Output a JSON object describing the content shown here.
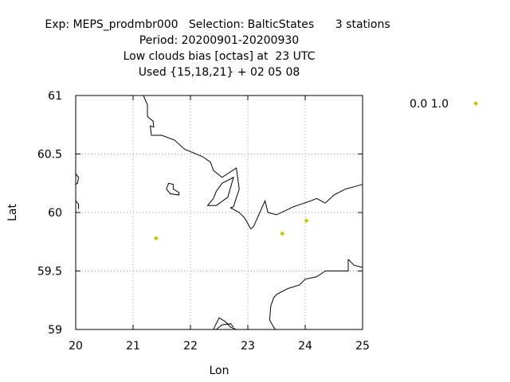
{
  "chart_data": {
    "type": "scatter",
    "title_lines": [
      "Exp: MEPS_prodmbr000   Selection: BalticStates      3 stations",
      "Period: 20200901-20200930",
      "Low clouds bias [octas] at  23 UTC",
      "Used {15,18,21} + 02 05 08"
    ],
    "xlabel": "Lon",
    "ylabel": "Lat",
    "xlim": [
      20,
      25
    ],
    "ylim": [
      59,
      61
    ],
    "x_ticks": [
      20,
      21,
      22,
      23,
      24,
      25
    ],
    "x_tick_labels": [
      "20",
      "21",
      "22",
      "23",
      "24",
      "25"
    ],
    "y_ticks": [
      59,
      59.5,
      60,
      60.5,
      61
    ],
    "y_tick_labels": [
      "59",
      "59.5",
      "60",
      "60.5",
      "61"
    ],
    "grid": true,
    "legend_position": "right",
    "series": [
      {
        "name": "0.0 1.0",
        "color": "#c8c800",
        "marker": "diamond",
        "points": [
          {
            "x": 21.4,
            "y": 59.78
          },
          {
            "x": 23.6,
            "y": 59.82
          },
          {
            "x": 24.02,
            "y": 59.93
          }
        ]
      }
    ],
    "coastlines": [
      [
        [
          21.18,
          61.0
        ],
        [
          21.25,
          60.92
        ],
        [
          21.25,
          60.82
        ],
        [
          21.35,
          60.78
        ],
        [
          21.36,
          60.73
        ],
        [
          21.3,
          60.74
        ],
        [
          21.32,
          60.66
        ],
        [
          21.5,
          60.66
        ],
        [
          21.72,
          60.62
        ],
        [
          21.9,
          60.54
        ],
        [
          22.2,
          60.48
        ],
        [
          22.35,
          60.43
        ],
        [
          22.4,
          60.36
        ],
        [
          22.55,
          60.3
        ],
        [
          22.8,
          60.38
        ],
        [
          22.85,
          60.2
        ],
        [
          22.75,
          60.05
        ],
        [
          22.7,
          60.04
        ],
        [
          22.85,
          60.0
        ],
        [
          22.95,
          59.95
        ],
        [
          23.05,
          59.86
        ],
        [
          23.1,
          59.88
        ],
        [
          23.3,
          60.1
        ],
        [
          23.35,
          60.0
        ],
        [
          23.5,
          59.98
        ],
        [
          23.8,
          60.05
        ],
        [
          24.1,
          60.1
        ],
        [
          24.2,
          60.12
        ],
        [
          24.35,
          60.08
        ],
        [
          24.5,
          60.15
        ],
        [
          24.7,
          60.2
        ],
        [
          24.85,
          60.22
        ],
        [
          25.0,
          60.24
        ]
      ],
      [
        [
          22.55,
          60.25
        ],
        [
          22.75,
          60.3
        ],
        [
          22.65,
          60.13
        ],
        [
          22.45,
          60.06
        ],
        [
          22.3,
          60.06
        ],
        [
          22.4,
          60.12
        ],
        [
          22.45,
          60.18
        ],
        [
          22.55,
          60.25
        ]
      ],
      [
        [
          21.7,
          60.2
        ],
        [
          21.8,
          60.17
        ],
        [
          21.8,
          60.15
        ],
        [
          21.65,
          60.16
        ],
        [
          21.58,
          60.2
        ],
        [
          21.62,
          60.25
        ],
        [
          21.7,
          60.24
        ],
        [
          21.7,
          60.2
        ]
      ],
      [
        [
          20.0,
          60.33
        ],
        [
          20.05,
          60.3
        ],
        [
          20.03,
          60.25
        ],
        [
          20.0,
          60.24
        ]
      ],
      [
        [
          20.0,
          60.1
        ],
        [
          20.05,
          60.07
        ],
        [
          20.05,
          60.03
        ]
      ],
      [
        [
          24.75,
          59.6
        ],
        [
          24.85,
          59.55
        ],
        [
          25.0,
          59.53
        ]
      ],
      [
        [
          24.75,
          59.6
        ],
        [
          24.75,
          59.5
        ],
        [
          24.5,
          59.5
        ],
        [
          24.35,
          59.5
        ],
        [
          24.2,
          59.45
        ],
        [
          24.0,
          59.43
        ],
        [
          23.9,
          59.38
        ],
        [
          23.7,
          59.35
        ],
        [
          23.5,
          59.3
        ],
        [
          23.45,
          59.27
        ],
        [
          23.4,
          59.2
        ],
        [
          23.38,
          59.08
        ],
        [
          23.45,
          59.02
        ],
        [
          23.48,
          59.0
        ]
      ],
      [
        [
          22.4,
          59.0
        ],
        [
          22.5,
          59.1
        ],
        [
          22.6,
          59.07
        ],
        [
          22.7,
          59.02
        ],
        [
          22.8,
          59.0
        ]
      ],
      [
        [
          22.45,
          59.0
        ],
        [
          22.55,
          59.04
        ],
        [
          22.7,
          59.05
        ],
        [
          22.75,
          59.02
        ]
      ]
    ]
  }
}
